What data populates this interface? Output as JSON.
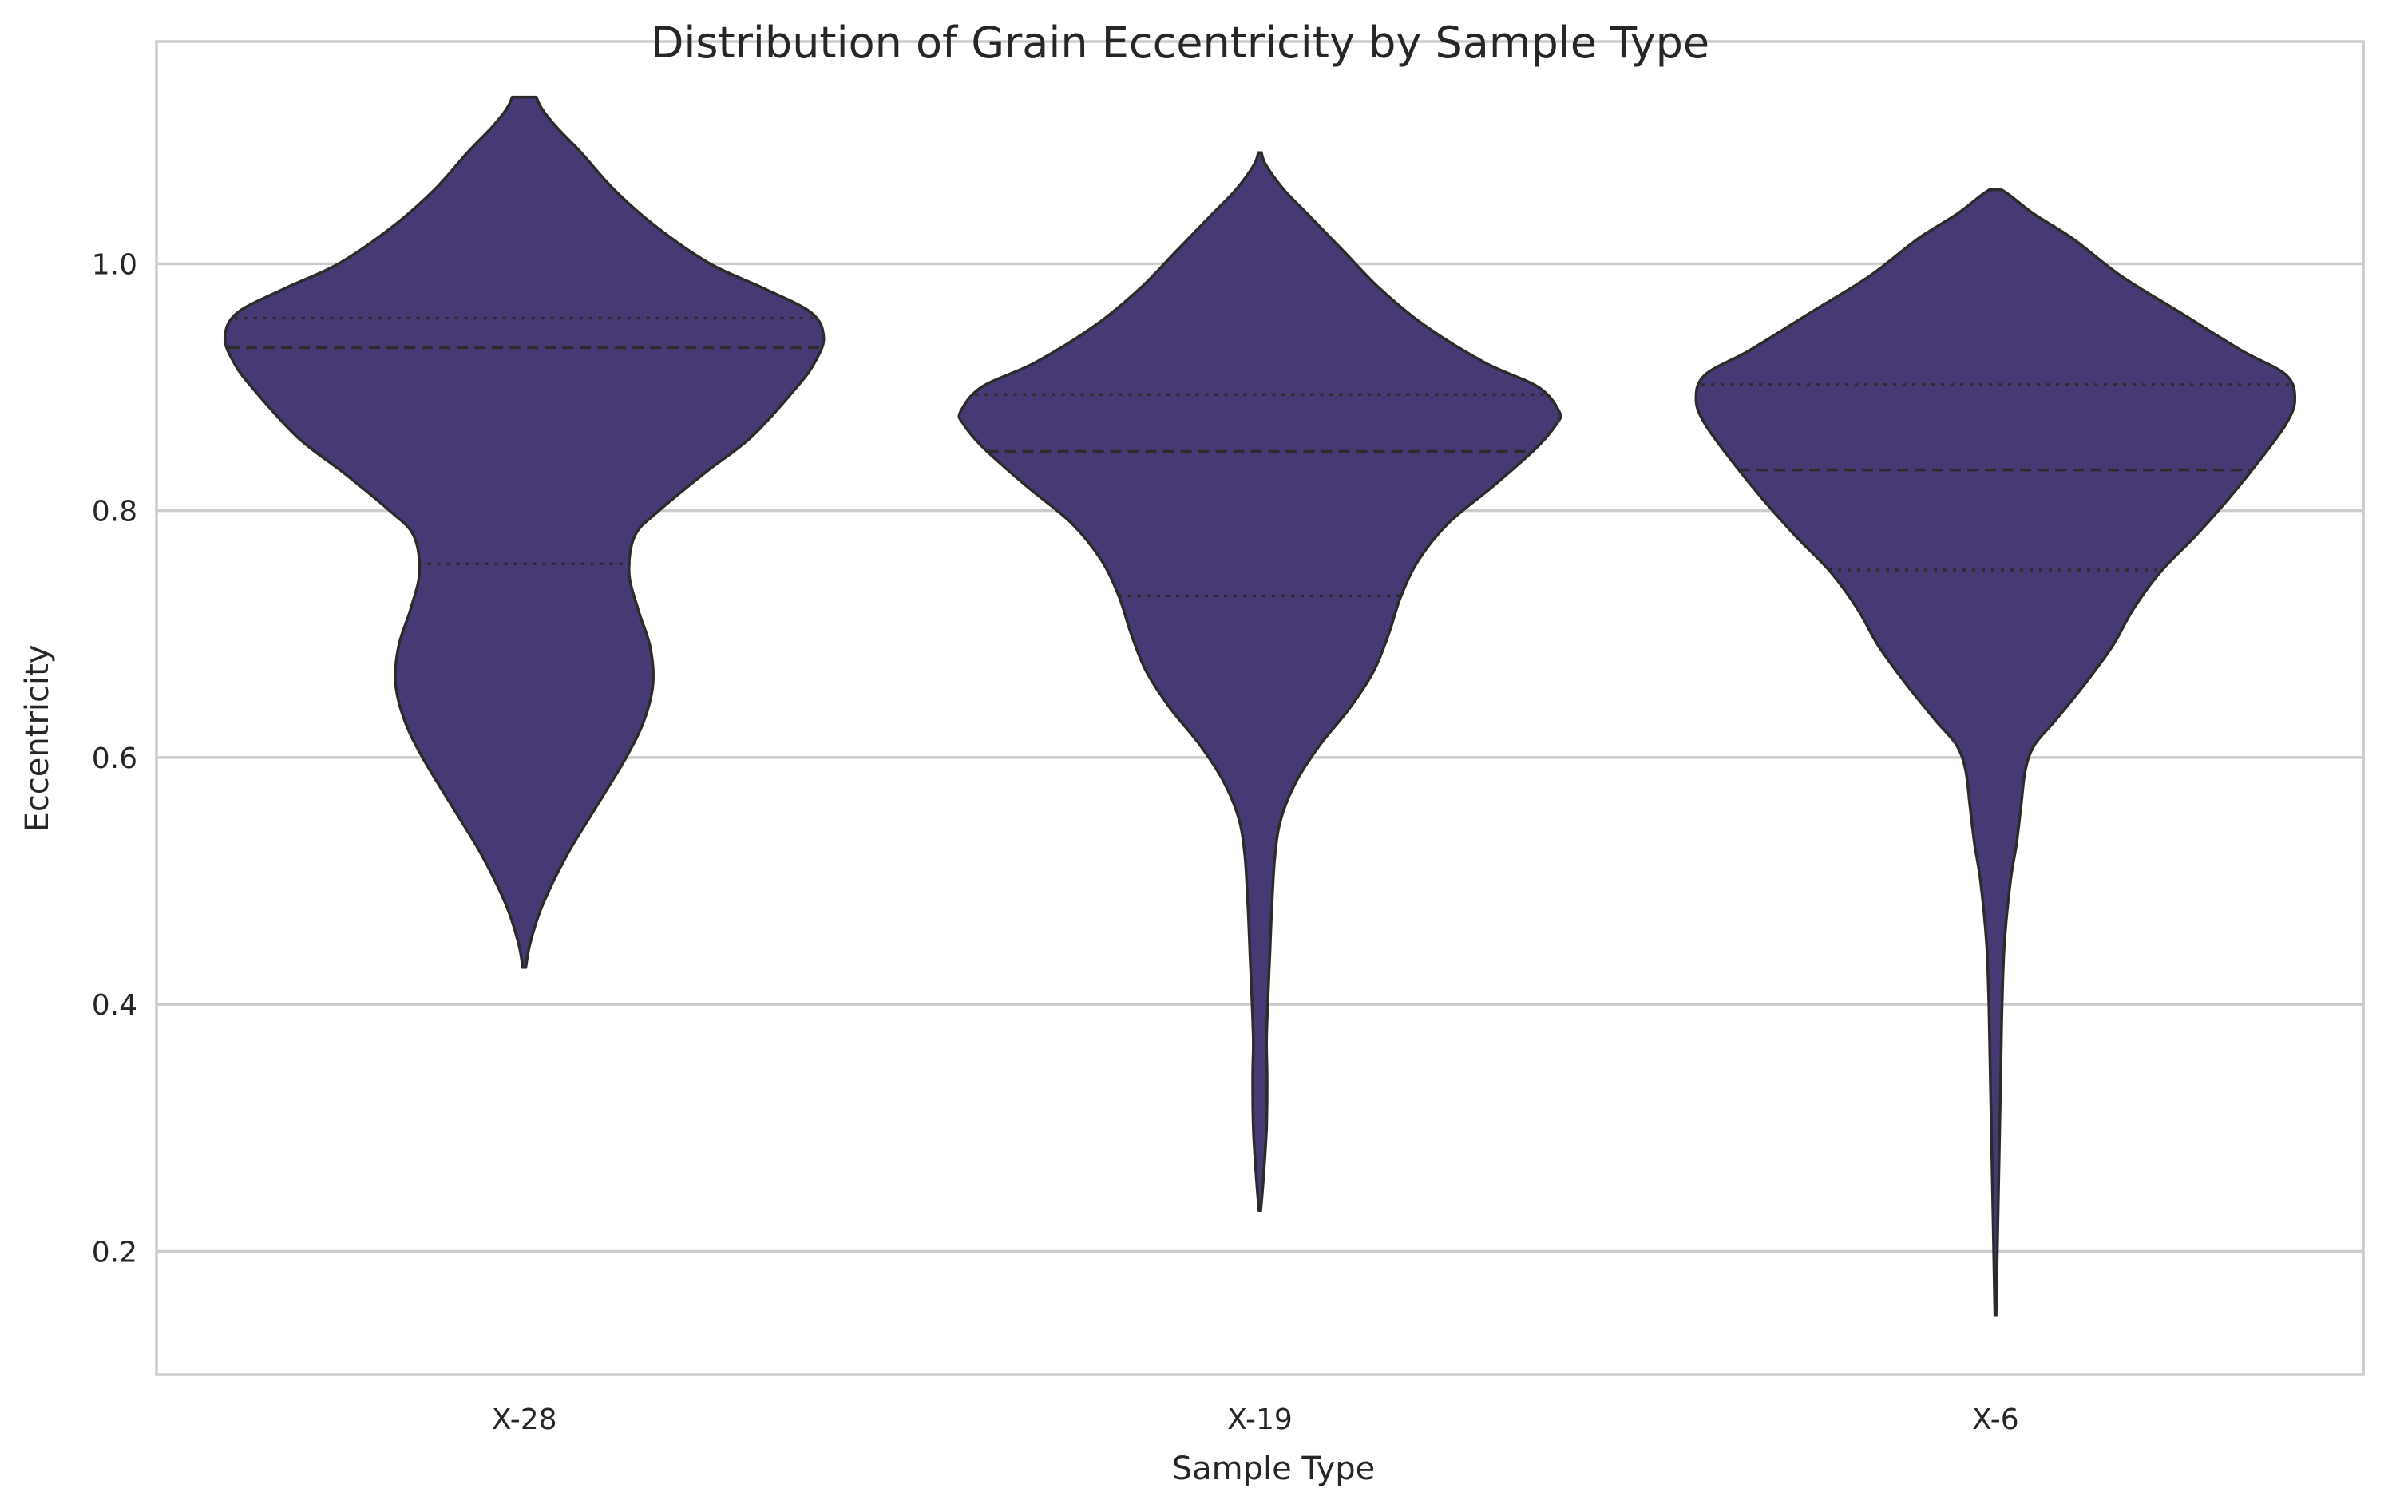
{
  "chart_data": {
    "type": "violin",
    "title": "Distribution of Grain Eccentricity by Sample Type",
    "xlabel": "Sample Type",
    "ylabel": "Eccentricity",
    "ylim": [
      0.1,
      1.18
    ],
    "yticks": [
      0.2,
      0.4,
      0.6,
      0.8,
      1.0
    ],
    "ytick_labels": [
      "0.2",
      "0.4",
      "0.6",
      "0.8",
      "1.0"
    ],
    "grid": "horizontal",
    "legend": "none",
    "categories": [
      "X-28",
      "X-19",
      "X-6"
    ],
    "violins": [
      {
        "category": "X-28",
        "min": 0.43,
        "max": 1.135,
        "q1": 0.757,
        "median": 0.932,
        "q3": 0.956,
        "profile": [
          [
            0.43,
            0.005
          ],
          [
            0.45,
            0.02
          ],
          [
            0.48,
            0.06
          ],
          [
            0.52,
            0.14
          ],
          [
            0.56,
            0.24
          ],
          [
            0.6,
            0.34
          ],
          [
            0.63,
            0.4
          ],
          [
            0.66,
            0.43
          ],
          [
            0.69,
            0.42
          ],
          [
            0.72,
            0.38
          ],
          [
            0.75,
            0.35
          ],
          [
            0.78,
            0.37
          ],
          [
            0.8,
            0.45
          ],
          [
            0.83,
            0.6
          ],
          [
            0.86,
            0.76
          ],
          [
            0.9,
            0.91
          ],
          [
            0.92,
            0.97
          ],
          [
            0.94,
            1.0
          ],
          [
            0.96,
            0.96
          ],
          [
            0.98,
            0.8
          ],
          [
            1.0,
            0.62
          ],
          [
            1.03,
            0.44
          ],
          [
            1.06,
            0.3
          ],
          [
            1.09,
            0.19
          ],
          [
            1.11,
            0.11
          ],
          [
            1.125,
            0.06
          ],
          [
            1.135,
            0.04
          ]
        ]
      },
      {
        "category": "X-19",
        "min": 0.233,
        "max": 1.09,
        "q1": 0.731,
        "median": 0.848,
        "q3": 0.894,
        "profile": [
          [
            0.233,
            0.003
          ],
          [
            0.26,
            0.012
          ],
          [
            0.3,
            0.022
          ],
          [
            0.34,
            0.024
          ],
          [
            0.37,
            0.022
          ],
          [
            0.4,
            0.026
          ],
          [
            0.44,
            0.033
          ],
          [
            0.48,
            0.04
          ],
          [
            0.52,
            0.05
          ],
          [
            0.55,
            0.07
          ],
          [
            0.58,
            0.12
          ],
          [
            0.61,
            0.2
          ],
          [
            0.64,
            0.3
          ],
          [
            0.67,
            0.38
          ],
          [
            0.7,
            0.43
          ],
          [
            0.73,
            0.47
          ],
          [
            0.76,
            0.53
          ],
          [
            0.79,
            0.63
          ],
          [
            0.82,
            0.78
          ],
          [
            0.85,
            0.92
          ],
          [
            0.87,
            0.99
          ],
          [
            0.88,
            1.0
          ],
          [
            0.9,
            0.93
          ],
          [
            0.92,
            0.75
          ],
          [
            0.95,
            0.55
          ],
          [
            0.98,
            0.4
          ],
          [
            1.01,
            0.28
          ],
          [
            1.04,
            0.16
          ],
          [
            1.06,
            0.08
          ],
          [
            1.08,
            0.02
          ],
          [
            1.09,
            0.005
          ]
        ]
      },
      {
        "category": "X-6",
        "min": 0.148,
        "max": 1.06,
        "q1": 0.752,
        "median": 0.833,
        "q3": 0.902,
        "profile": [
          [
            0.148,
            0.002
          ],
          [
            0.2,
            0.006
          ],
          [
            0.25,
            0.01
          ],
          [
            0.3,
            0.014
          ],
          [
            0.35,
            0.018
          ],
          [
            0.4,
            0.022
          ],
          [
            0.45,
            0.03
          ],
          [
            0.5,
            0.05
          ],
          [
            0.53,
            0.07
          ],
          [
            0.56,
            0.085
          ],
          [
            0.59,
            0.1
          ],
          [
            0.61,
            0.13
          ],
          [
            0.63,
            0.2
          ],
          [
            0.66,
            0.3
          ],
          [
            0.69,
            0.39
          ],
          [
            0.72,
            0.46
          ],
          [
            0.75,
            0.55
          ],
          [
            0.78,
            0.67
          ],
          [
            0.81,
            0.78
          ],
          [
            0.84,
            0.88
          ],
          [
            0.87,
            0.97
          ],
          [
            0.89,
            1.0
          ],
          [
            0.91,
            0.97
          ],
          [
            0.93,
            0.82
          ],
          [
            0.96,
            0.62
          ],
          [
            0.99,
            0.42
          ],
          [
            1.02,
            0.26
          ],
          [
            1.04,
            0.13
          ],
          [
            1.055,
            0.05
          ],
          [
            1.06,
            0.02
          ]
        ]
      }
    ],
    "colors": {
      "violin_fill": "#473a74",
      "violin_edge": "#2b2b2b",
      "grid": "#cccccc",
      "text": "#262626",
      "background": "#ffffff"
    }
  }
}
